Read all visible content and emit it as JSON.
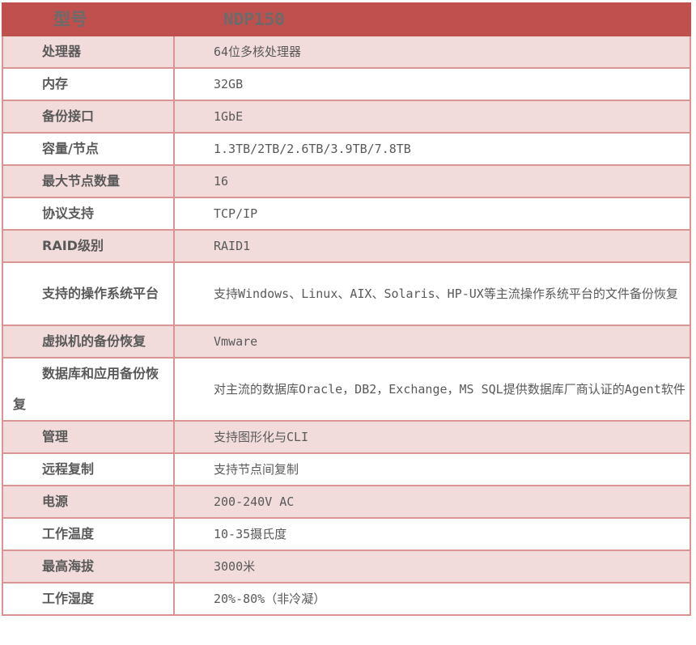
{
  "header": {
    "key": "型号",
    "value": "NDP150"
  },
  "rows": [
    {
      "key": "处理器",
      "value": "64位多核处理器"
    },
    {
      "key": "内存",
      "value": "32GB"
    },
    {
      "key": "备份接口",
      "value": "1GbE"
    },
    {
      "key": "容量/节点",
      "value": "1.3TB/2TB/2.6TB/3.9TB/7.8TB"
    },
    {
      "key": "最大节点数量",
      "value": "16"
    },
    {
      "key": "协议支持",
      "value": "TCP/IP"
    },
    {
      "key": "RAID级别",
      "value": "RAID1"
    },
    {
      "key": "支持的操作系统平台",
      "value": "支持Windows、Linux、AIX、Solaris、HP-UX等主流操作系统平台的文件备份恢复"
    },
    {
      "key": "虚拟机的备份恢复",
      "value": "Vmware"
    },
    {
      "key": "数据库和应用备份恢复",
      "value": "对主流的数据库Oracle，DB2，Exchange，MS SQL提供数据库厂商认证的Agent软件"
    },
    {
      "key": "管理",
      "value": "支持图形化与CLI"
    },
    {
      "key": "远程复制",
      "value": "支持节点间复制"
    },
    {
      "key": "电源",
      "value": "200-240V AC"
    },
    {
      "key": "工作温度",
      "value": "10-35摄氏度"
    },
    {
      "key": "最高海拔",
      "value": "3000米"
    },
    {
      "key": "工作湿度",
      "value": "20%-80%（非冷凝）"
    }
  ],
  "colors": {
    "header": "#c0504d",
    "row_alt": "#f2dbdb",
    "border": "#d99594"
  }
}
